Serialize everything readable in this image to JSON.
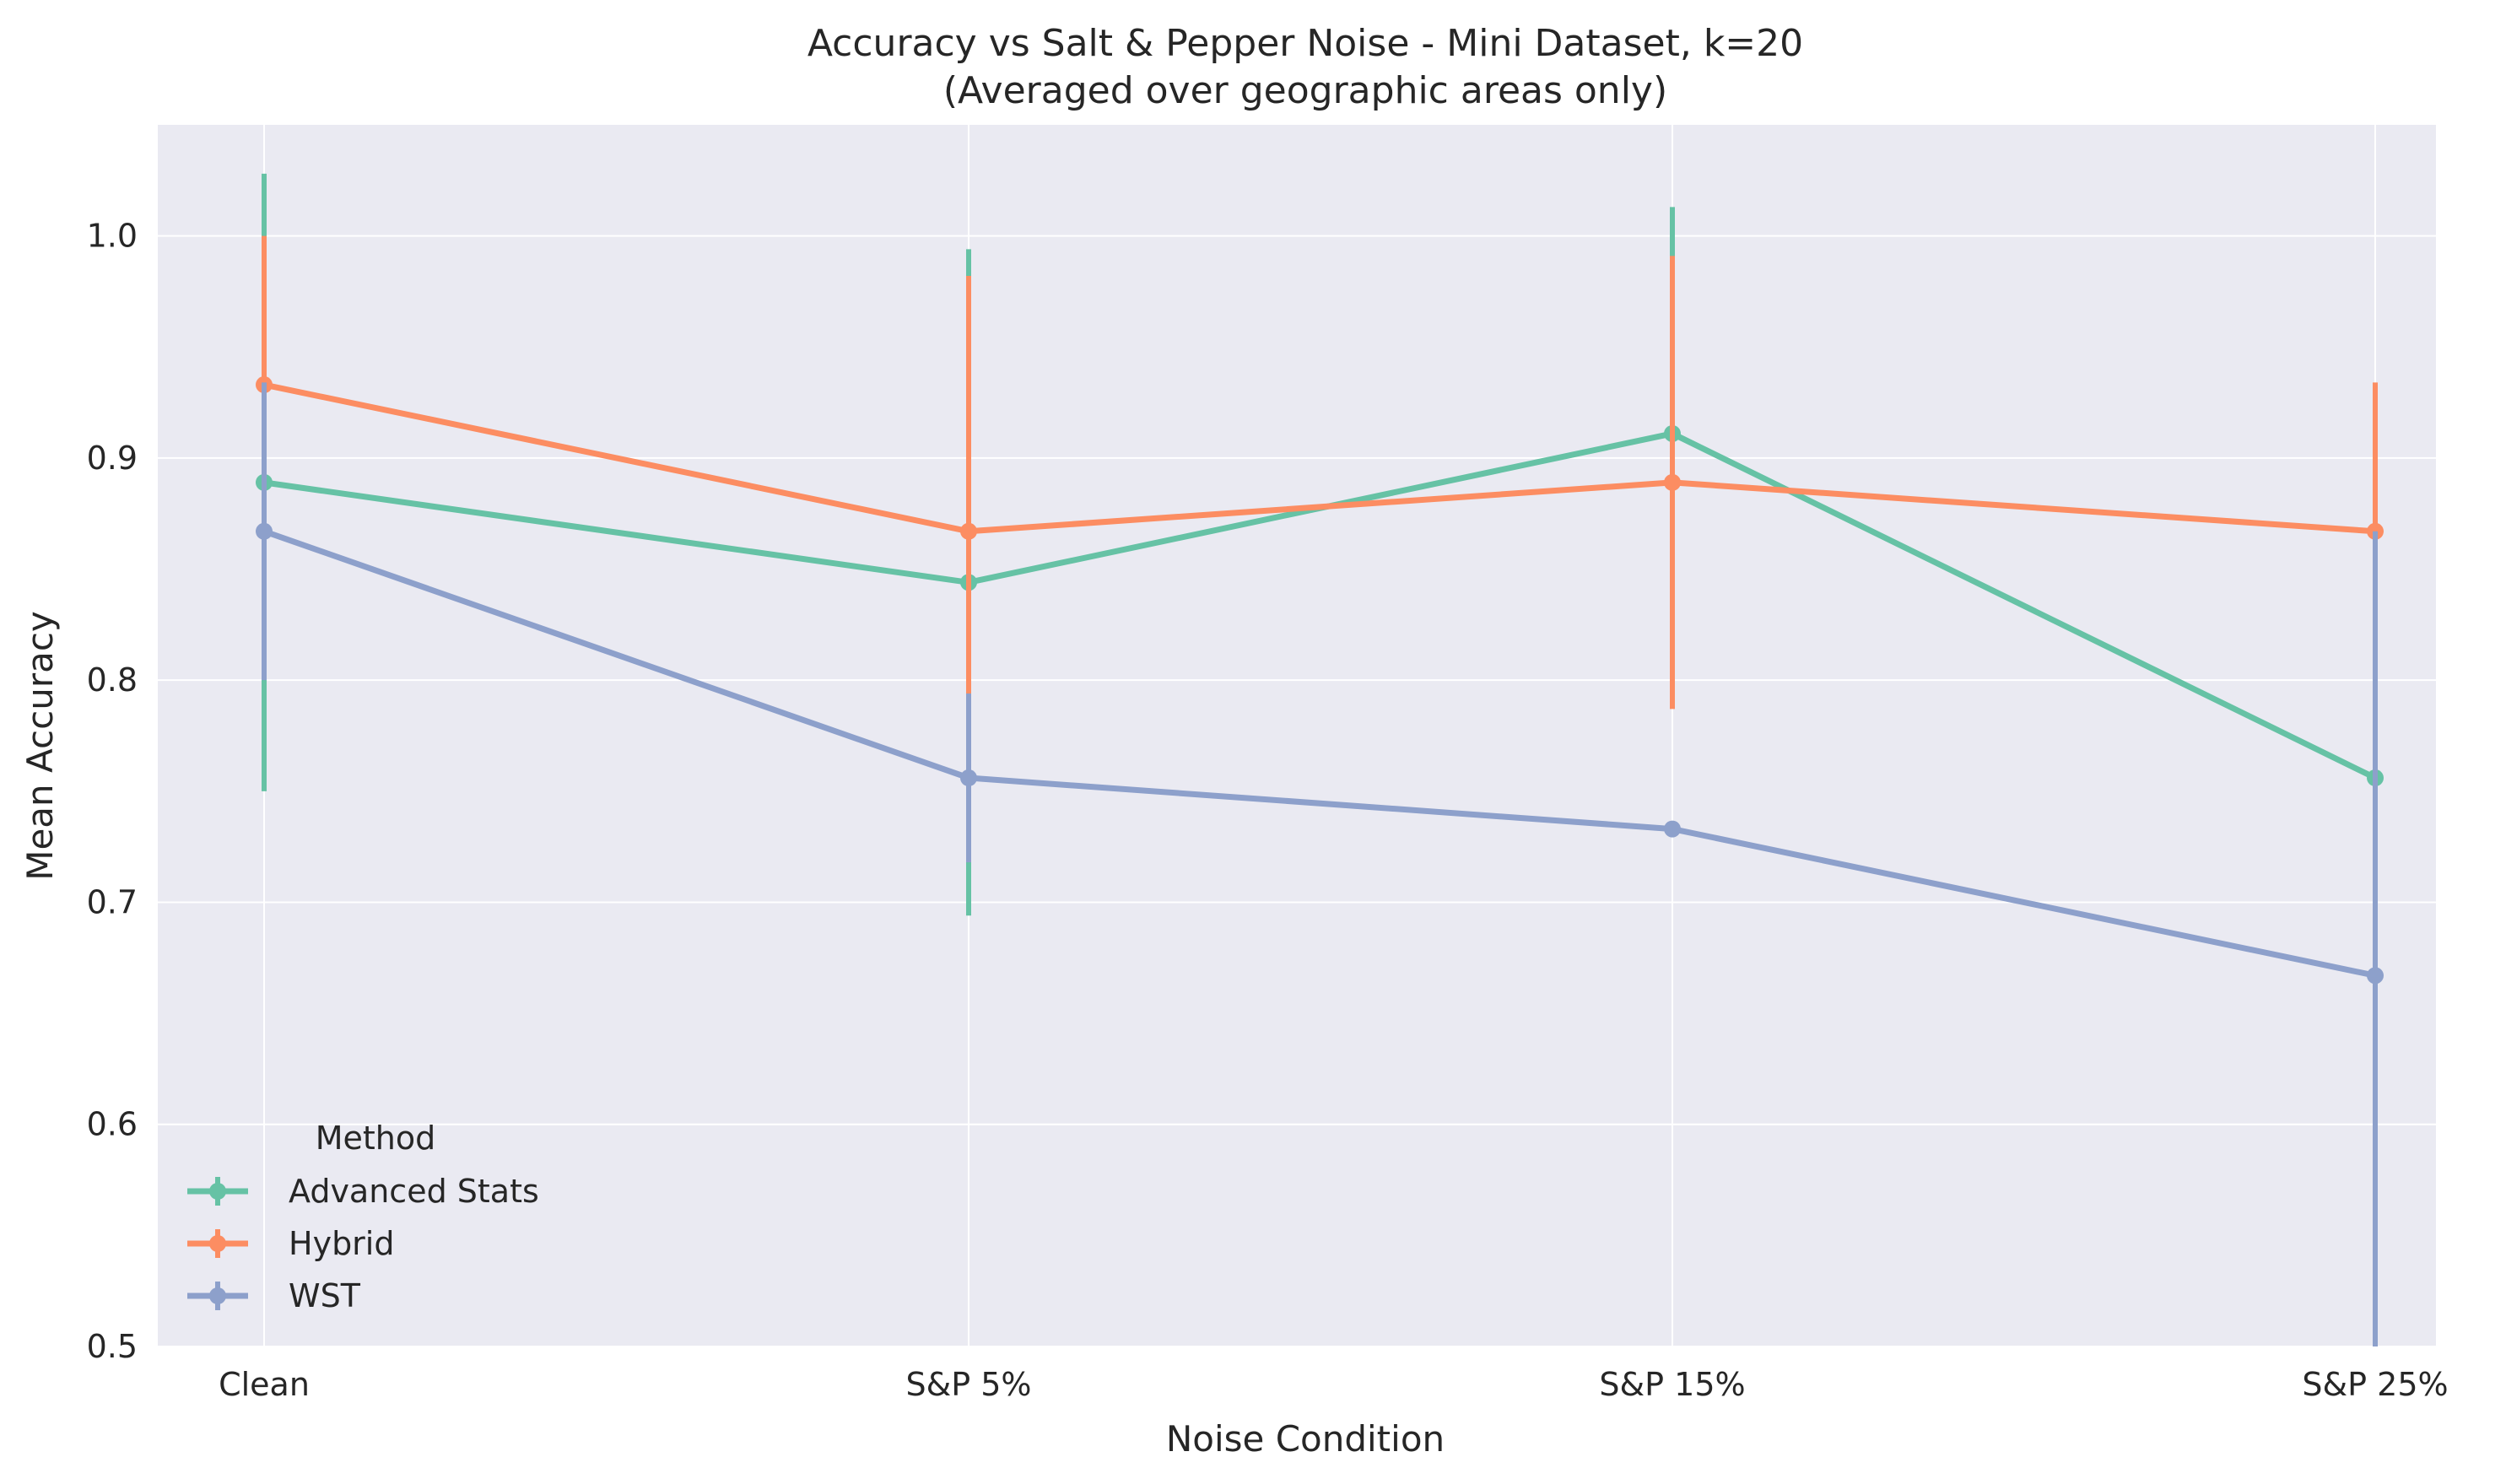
{
  "chart_data": {
    "type": "line",
    "title": "Accuracy vs Salt & Pepper Noise - Mini Dataset, k=20",
    "subtitle": "(Averaged over geographic areas only)",
    "xlabel": "Noise Condition",
    "ylabel": "Mean Accuracy",
    "categories": [
      "Clean",
      "S&P 5%",
      "S&P 15%",
      "S&P 25%"
    ],
    "ylim": [
      0.5,
      1.05
    ],
    "yticks": [
      "0.5",
      "0.6",
      "0.7",
      "0.8",
      "0.9",
      "1.0"
    ],
    "grid": true,
    "legend": {
      "title": "Method",
      "placement": "lower-left"
    },
    "series": [
      {
        "name": "Advanced Stats",
        "color": "#66c2a5",
        "values": [
          0.889,
          0.844,
          0.911,
          0.756
        ],
        "error": [
          0.139,
          0.15,
          0.102,
          0.1
        ]
      },
      {
        "name": "Hybrid",
        "color": "#fc8d62",
        "values": [
          0.933,
          0.867,
          0.889,
          0.867
        ],
        "error": [
          0.067,
          0.115,
          0.102,
          0.067
        ]
      },
      {
        "name": "WST",
        "color": "#8da0cb",
        "values": [
          0.867,
          0.756,
          0.733,
          0.667
        ],
        "error": [
          0.067,
          0.038,
          0.0,
          0.2
        ]
      }
    ]
  }
}
